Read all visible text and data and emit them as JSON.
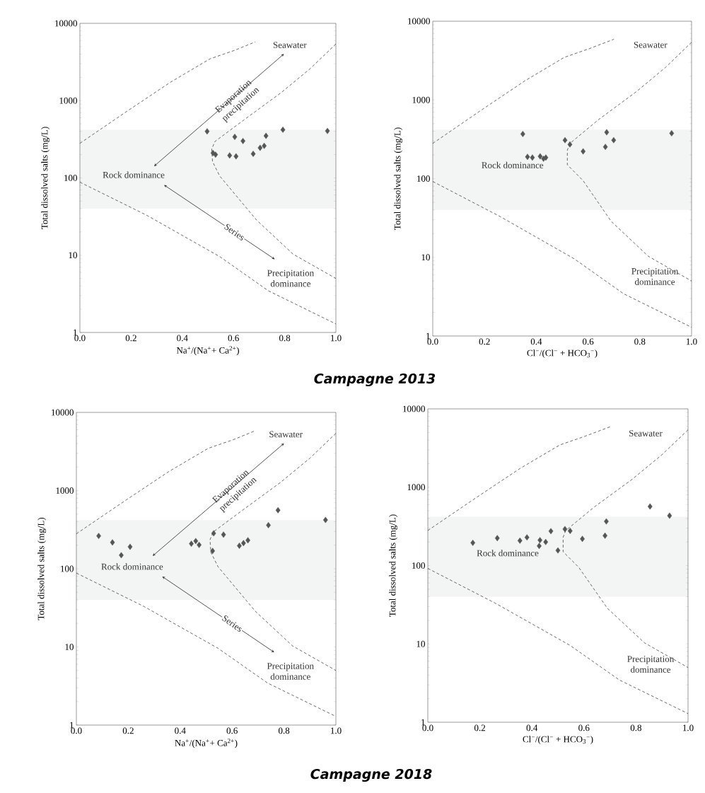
{
  "chart_data": [
    {
      "type": "scatter",
      "xlabel": "Na$^{+}$/(Na$^{+}$+ Ca$^{2+}$)",
      "ylabel": "Total dissolved salts (mg/L)",
      "log": "y",
      "marker": "diamond",
      "xlim": [
        0,
        1
      ],
      "ylim": [
        1,
        10000
      ],
      "xticks": [
        {
          "value": 0,
          "label": "0.0"
        },
        {
          "value": 0.2,
          "label": "0.2"
        },
        {
          "value": 0.4,
          "label": "0.4"
        },
        {
          "value": 0.6,
          "label": "0.6"
        },
        {
          "value": 0.8,
          "label": "0.8"
        },
        {
          "value": 1,
          "label": "1.0"
        }
      ],
      "yticks": [
        1,
        10,
        100,
        1000,
        10000
      ],
      "bands": [
        {
          "axis": "y",
          "from": 40,
          "to": 420,
          "color": "#f3f4f4"
        }
      ],
      "series": [
        {
          "type": "line",
          "color": "#444444",
          "marker": "none",
          "line_style": "dashed",
          "x": [
            0,
            0.183,
            0.355,
            0.508,
            0.604,
            0.685
          ],
          "values": [
            280,
            725,
            1740,
            3470,
            4470,
            5750
          ]
        },
        {
          "type": "line",
          "color": "#444444",
          "marker": "none",
          "line_style": "dashed",
          "x": [
            1.0,
            0.9,
            0.785,
            0.64,
            0.527,
            0.515,
            0.518,
            0.546,
            0.69,
            0.833,
            1.0
          ],
          "values": [
            5400,
            2600,
            1260,
            560,
            295,
            235,
            163,
            106,
            28.5,
            10.3,
            5.0
          ]
        },
        {
          "type": "line",
          "color": "#444444",
          "marker": "none",
          "line_style": "dashed",
          "x": [
            0,
            0.26,
            0.546,
            0.737,
            1.0
          ],
          "values": [
            88,
            33,
            9.6,
            3.45,
            1.29
          ]
        },
        {
          "color": "#555555",
          "x": [
            0.497,
            0.52,
            0.53,
            0.585,
            0.61,
            0.605,
            0.637,
            0.677,
            0.704,
            0.72,
            0.727,
            0.793,
            0.967
          ],
          "values": [
            400,
            210,
            200,
            195,
            190,
            340,
            300,
            205,
            245,
            260,
            350,
            420,
            405
          ]
        }
      ],
      "annotations": [
        "Seawater",
        "Evaporation precipitation",
        "Rock dominance",
        "Series",
        "Precipitation dominance",
        "Campagne 2013"
      ]
    },
    {
      "type": "scatter",
      "xlabel": "Cl$^{−}$/(Cl$^{−}$ + HCO$_{3}$$^{−}$)",
      "ylabel": "Total dissolved salts (mg/L)",
      "log": "y",
      "marker": "diamond",
      "xlim": [
        0,
        1
      ],
      "ylim": [
        1,
        10000
      ],
      "xticks": [
        {
          "value": 0,
          "label": "0.0"
        },
        {
          "value": 0.2,
          "label": "0.2"
        },
        {
          "value": 0.4,
          "label": "0.4"
        },
        {
          "value": 0.6,
          "label": "0.6"
        },
        {
          "value": 0.8,
          "label": "0.8"
        },
        {
          "value": 1,
          "label": "1.0"
        }
      ],
      "yticks": [
        1,
        10,
        100,
        1000,
        10000
      ],
      "bands": [
        {
          "axis": "y",
          "from": 40,
          "to": 420,
          "color": "#f3f4f4"
        }
      ],
      "series": [
        {
          "type": "line",
          "color": "#444444",
          "marker": "none",
          "line_style": "dashed",
          "x": [
            0,
            0.183,
            0.355,
            0.508,
            0.604,
            0.7
          ],
          "values": [
            280,
            725,
            1740,
            3470,
            4470,
            5900
          ]
        },
        {
          "type": "line",
          "color": "#444444",
          "marker": "none",
          "line_style": "dashed",
          "x": [
            1.0,
            0.9,
            0.785,
            0.64,
            0.53,
            0.52,
            0.52,
            0.58,
            0.69,
            0.833,
            1.0
          ],
          "values": [
            5400,
            2600,
            1260,
            560,
            280,
            230,
            150,
            95,
            28.5,
            10.3,
            5.0
          ]
        },
        {
          "type": "line",
          "color": "#444444",
          "marker": "none",
          "line_style": "dashed",
          "x": [
            0,
            0.26,
            0.546,
            0.737,
            1.0
          ],
          "values": [
            92,
            33,
            9.6,
            3.45,
            1.29
          ]
        },
        {
          "color": "#555555",
          "x": [
            0.348,
            0.366,
            0.385,
            0.415,
            0.428,
            0.437,
            0.511,
            0.53,
            0.581,
            0.667,
            0.672,
            0.699,
            0.923
          ],
          "values": [
            369,
            189,
            185,
            192,
            179,
            185,
            308,
            272,
            222,
            253,
            388,
            308,
            377
          ]
        }
      ],
      "annotations": [
        "Seawater",
        "Rock dominance",
        "Precipitation dominance"
      ]
    },
    {
      "type": "scatter",
      "xlabel": "Na$^{+}$/(Na$^{+}$+ Ca$^{2+}$)",
      "ylabel": "Total dissolved salts (mg/L)",
      "log": "y",
      "marker": "diamond",
      "xlim": [
        0,
        1
      ],
      "ylim": [
        1,
        10000
      ],
      "xticks": [
        {
          "value": 0,
          "label": "0.0"
        },
        {
          "value": 0.2,
          "label": "0.2"
        },
        {
          "value": 0.4,
          "label": "0.4"
        },
        {
          "value": 0.6,
          "label": "0.6"
        },
        {
          "value": 0.8,
          "label": "0.8"
        },
        {
          "value": 1,
          "label": "1.0"
        }
      ],
      "yticks": [
        1,
        10,
        100,
        1000,
        10000
      ],
      "bands": [
        {
          "axis": "y",
          "from": 40,
          "to": 420,
          "color": "#f3f4f4"
        }
      ],
      "series": [
        {
          "type": "line",
          "color": "#444444",
          "marker": "none",
          "line_style": "dashed",
          "x": [
            0,
            0.183,
            0.355,
            0.508,
            0.604,
            0.685
          ],
          "values": [
            280,
            725,
            1740,
            3470,
            4470,
            5750
          ]
        },
        {
          "type": "line",
          "color": "#444444",
          "marker": "none",
          "line_style": "dashed",
          "x": [
            1.0,
            0.9,
            0.785,
            0.64,
            0.527,
            0.515,
            0.518,
            0.546,
            0.69,
            0.833,
            1.0
          ],
          "values": [
            5400,
            2600,
            1260,
            560,
            295,
            235,
            163,
            106,
            28.5,
            10.3,
            5.0
          ]
        },
        {
          "type": "line",
          "color": "#444444",
          "marker": "none",
          "line_style": "dashed",
          "x": [
            0,
            0.26,
            0.546,
            0.737,
            1.0
          ],
          "values": [
            88,
            33,
            9.6,
            3.45,
            1.29
          ]
        },
        {
          "color": "#555555",
          "x": [
            0.086,
            0.139,
            0.173,
            0.207,
            0.443,
            0.46,
            0.473,
            0.529,
            0.525,
            0.567,
            0.628,
            0.644,
            0.661,
            0.74,
            0.777,
            0.96
          ],
          "values": [
            263,
            217,
            149,
            191,
            209,
            226,
            202,
            284,
            169,
            273,
            197,
            213,
            231,
            361,
            561,
            421
          ]
        }
      ],
      "annotations": [
        "Seawater",
        "Evaporation precipitation",
        "Rock dominance",
        "Series",
        "Precipitation dominance",
        "Campagne 2018"
      ]
    },
    {
      "type": "scatter",
      "xlabel": "Cl$^{−}$/(Cl$^{−}$ + HCO$_{3}$$^{−}$)",
      "ylabel": "Total dissolved salts (mg/L)",
      "log": "y",
      "marker": "diamond",
      "xlim": [
        0,
        1
      ],
      "ylim": [
        1,
        10000
      ],
      "xticks": [
        {
          "value": 0,
          "label": "0.0"
        },
        {
          "value": 0.2,
          "label": "0.2"
        },
        {
          "value": 0.4,
          "label": "0.4"
        },
        {
          "value": 0.6,
          "label": "0.6"
        },
        {
          "value": 0.8,
          "label": "0.8"
        },
        {
          "value": 1,
          "label": "1.0"
        }
      ],
      "yticks": [
        1,
        10,
        100,
        1000,
        10000
      ],
      "bands": [
        {
          "axis": "y",
          "from": 40,
          "to": 420,
          "color": "#f3f4f4"
        }
      ],
      "series": [
        {
          "type": "line",
          "color": "#444444",
          "marker": "none",
          "line_style": "dashed",
          "x": [
            0,
            0.183,
            0.355,
            0.508,
            0.604,
            0.7
          ],
          "values": [
            280,
            725,
            1740,
            3470,
            4470,
            5900
          ]
        },
        {
          "type": "line",
          "color": "#444444",
          "marker": "none",
          "line_style": "dashed",
          "x": [
            1.0,
            0.9,
            0.785,
            0.64,
            0.53,
            0.52,
            0.52,
            0.58,
            0.69,
            0.833,
            1.0
          ],
          "values": [
            5400,
            2600,
            1260,
            560,
            280,
            230,
            150,
            95,
            28.5,
            10.3,
            5.0
          ]
        },
        {
          "type": "line",
          "color": "#444444",
          "marker": "none",
          "line_style": "dashed",
          "x": [
            0,
            0.26,
            0.546,
            0.737,
            1.0
          ],
          "values": [
            92,
            33,
            9.6,
            3.45,
            1.29
          ]
        },
        {
          "color": "#555555",
          "x": [
            0.173,
            0.267,
            0.354,
            0.381,
            0.431,
            0.428,
            0.453,
            0.473,
            0.5,
            0.527,
            0.547,
            0.594,
            0.681,
            0.686,
            0.854,
            0.929
          ],
          "values": [
            195,
            224,
            208,
            229,
            211,
            178,
            200,
            275,
            156,
            292,
            277,
            219,
            241,
            366,
            568,
            433
          ]
        }
      ],
      "annotations": [
        "Seawater",
        "Rock dominance",
        "Precipitation dominance"
      ]
    }
  ]
}
